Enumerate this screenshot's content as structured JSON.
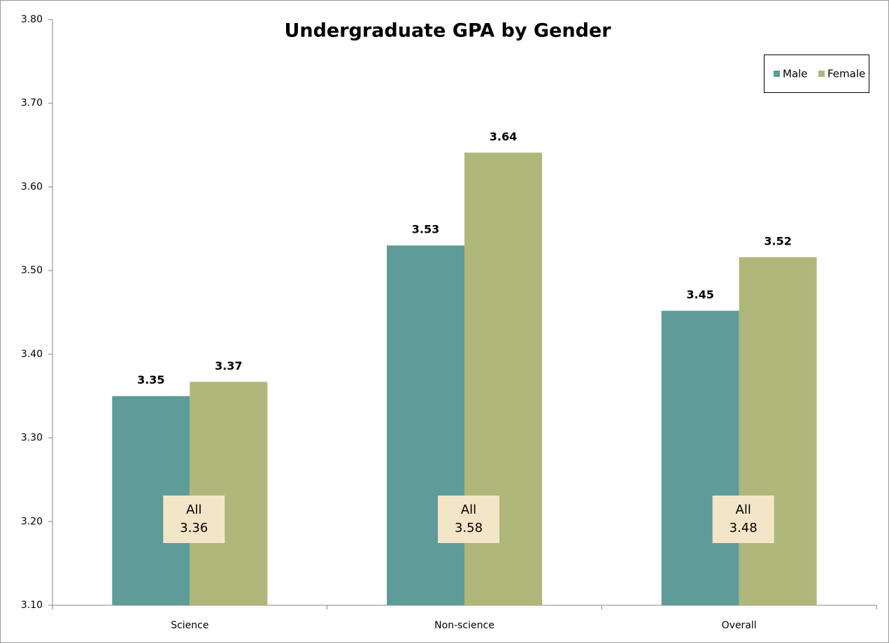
{
  "chart_data": {
    "type": "bar",
    "title": "Undergraduate GPA by Gender",
    "categories": [
      "Science",
      "Non-science",
      "Overall"
    ],
    "series": [
      {
        "name": "Male",
        "color": "#5f9b98",
        "values": [
          3.35,
          3.53,
          3.452
        ],
        "value_labels": [
          "3.35",
          "3.53",
          "3.45"
        ]
      },
      {
        "name": "Female",
        "color": "#b0b77a",
        "values": [
          3.367,
          3.641,
          3.516
        ],
        "value_labels": [
          "3.37",
          "3.64",
          "3.52"
        ]
      }
    ],
    "annotations": {
      "label": "All",
      "values": [
        3.36,
        3.58,
        3.48
      ]
    },
    "ylim": [
      3.1,
      3.8
    ],
    "yticks": [
      {
        "value": 3.1,
        "label": "3.10"
      },
      {
        "value": 3.2,
        "label": "3.20"
      },
      {
        "value": 3.3,
        "label": "3.30"
      },
      {
        "value": 3.4,
        "label": "3.40"
      },
      {
        "value": 3.5,
        "label": "3.50"
      },
      {
        "value": 3.6,
        "label": "3.60"
      },
      {
        "value": 3.7,
        "label": "3.70"
      },
      {
        "value": 3.8,
        "label": "3.80"
      }
    ],
    "grid": false,
    "legend": "top-right"
  }
}
